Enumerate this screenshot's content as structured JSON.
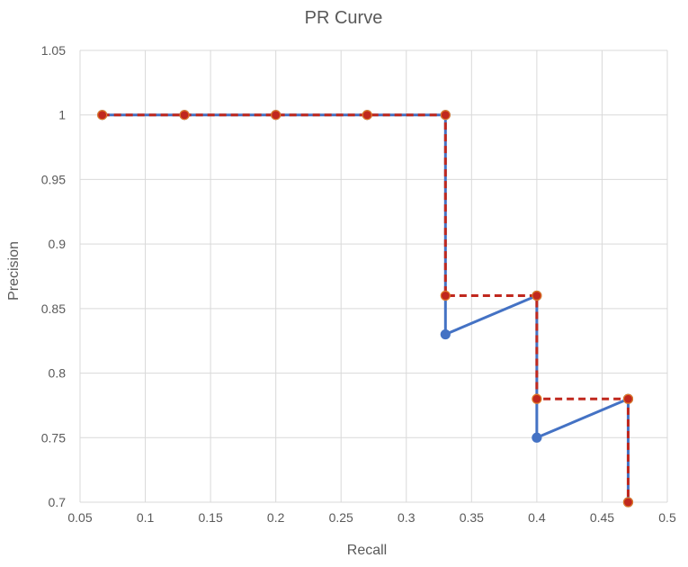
{
  "chart_data": {
    "type": "line",
    "title": "PR Curve",
    "xlabel": "Recall",
    "ylabel": "Precision",
    "xlim": [
      0.05,
      0.5
    ],
    "ylim": [
      0.7,
      1.05
    ],
    "xticks": [
      "0.05",
      "0.1",
      "0.15",
      "0.2",
      "0.25",
      "0.3",
      "0.35",
      "0.4",
      "0.45",
      "0.5"
    ],
    "yticks": [
      "0.7",
      "0.75",
      "0.8",
      "0.85",
      "0.9",
      "0.95",
      "1",
      "1.05"
    ],
    "grid": true,
    "legend": "none",
    "series": [
      {
        "color": "#4472C4",
        "style": "solid",
        "points": [
          [
            0.067,
            1
          ],
          [
            0.13,
            1
          ],
          [
            0.2,
            1
          ],
          [
            0.27,
            1
          ],
          [
            0.33,
            1
          ],
          [
            0.33,
            0.83
          ],
          [
            0.4,
            0.86
          ],
          [
            0.4,
            0.75
          ],
          [
            0.47,
            0.78
          ],
          [
            0.47,
            0.7
          ]
        ]
      },
      {
        "color": "#C0281E",
        "marker_edge": "#E07B2A",
        "style": "dashed",
        "points": [
          [
            0.067,
            1
          ],
          [
            0.13,
            1
          ],
          [
            0.2,
            1
          ],
          [
            0.27,
            1
          ],
          [
            0.33,
            1
          ],
          [
            0.33,
            0.86
          ],
          [
            0.4,
            0.86
          ],
          [
            0.4,
            0.78
          ],
          [
            0.47,
            0.78
          ],
          [
            0.47,
            0.7
          ]
        ]
      }
    ]
  }
}
